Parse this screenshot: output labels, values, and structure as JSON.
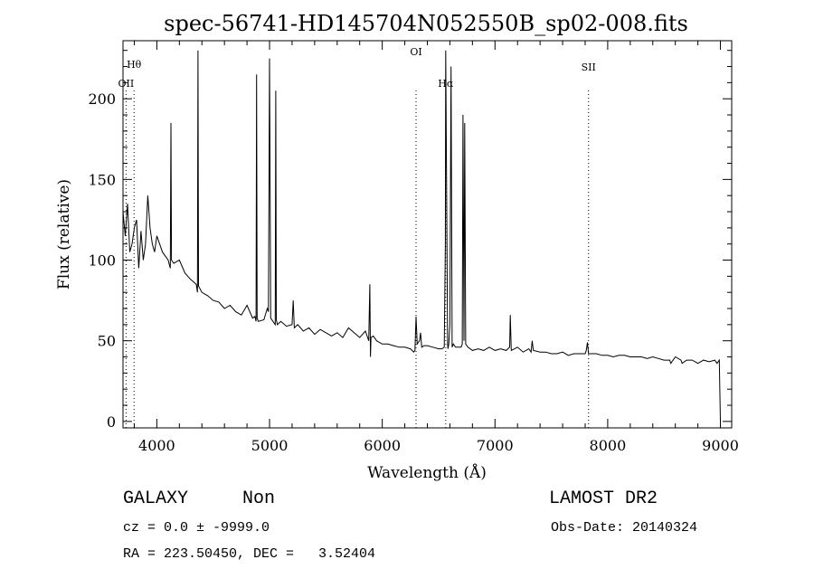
{
  "chart_data": {
    "type": "line",
    "title": "spec-56741-HD145704N052550B_sp02-008.fits",
    "xlabel": "Wavelength (Å)",
    "ylabel": "Flux (relative)",
    "xlim": [
      3700,
      9100
    ],
    "ylim": [
      -4,
      236
    ],
    "xticks": [
      4000,
      5000,
      6000,
      7000,
      8000,
      9000
    ],
    "yticks": [
      0,
      50,
      100,
      150,
      200
    ],
    "series": [
      {
        "x": [
          3700,
          3720,
          3740,
          3760,
          3780,
          3800,
          3820,
          3840,
          3860,
          3880,
          3900,
          3920,
          3940,
          3960,
          3980,
          4000,
          4050,
          4100,
          4120,
          4125,
          4130,
          4150,
          4200,
          4250,
          4300,
          4350,
          4360,
          4365,
          4370,
          4400,
          4450,
          4500,
          4550,
          4600,
          4650,
          4700,
          4750,
          4800,
          4850,
          4870,
          4880,
          4885,
          4890,
          4900,
          4950,
          4980,
          4990,
          5000,
          5010,
          5050,
          5055,
          5060,
          5070,
          5100,
          5150,
          5200,
          5210,
          5220,
          5250,
          5300,
          5350,
          5400,
          5450,
          5500,
          5550,
          5600,
          5650,
          5700,
          5750,
          5800,
          5850,
          5880,
          5890,
          5895,
          5900,
          5920,
          5950,
          6000,
          6050,
          6100,
          6150,
          6200,
          6250,
          6280,
          6290,
          6300,
          6310,
          6330,
          6340,
          6350,
          6370,
          6400,
          6450,
          6500,
          6530,
          6550,
          6560,
          6563,
          6580,
          6583,
          6590,
          6600,
          6610,
          6620,
          6630,
          6650,
          6700,
          6710,
          6716,
          6725,
          6731,
          6740,
          6760,
          6800,
          6850,
          6900,
          6950,
          7000,
          7050,
          7100,
          7130,
          7136,
          7145,
          7200,
          7250,
          7300,
          7320,
          7330,
          7340,
          7400,
          7450,
          7500,
          7550,
          7600,
          7650,
          7700,
          7750,
          7800,
          7810,
          7820,
          7830,
          7900,
          7950,
          8000,
          8050,
          8100,
          8150,
          8200,
          8250,
          8300,
          8350,
          8400,
          8450,
          8500,
          8550,
          8560,
          8600,
          8650,
          8660,
          8700,
          8750,
          8800,
          8850,
          8900,
          8950,
          8970,
          8990,
          9000
        ],
        "y": [
          130,
          115,
          135,
          105,
          110,
          120,
          125,
          95,
          118,
          100,
          110,
          140,
          120,
          110,
          105,
          115,
          105,
          100,
          95,
          185,
          100,
          98,
          100,
          92,
          88,
          85,
          80,
          230,
          84,
          80,
          78,
          75,
          74,
          70,
          72,
          68,
          66,
          72,
          64,
          65,
          62,
          215,
          64,
          62,
          63,
          70,
          68,
          225,
          64,
          60,
          205,
          63,
          60,
          62,
          59,
          60,
          75,
          58,
          60,
          56,
          58,
          54,
          57,
          55,
          53,
          55,
          52,
          58,
          55,
          52,
          56,
          50,
          85,
          40,
          52,
          53,
          50,
          48,
          48,
          47,
          46,
          46,
          45,
          43,
          44,
          65,
          48,
          50,
          55,
          46,
          47,
          47,
          46,
          45,
          45,
          46,
          110,
          230,
          48,
          45,
          48,
          60,
          220,
          46,
          48,
          46,
          46,
          48,
          190,
          50,
          185,
          48,
          46,
          44,
          45,
          44,
          46,
          44,
          45,
          44,
          46,
          66,
          44,
          46,
          43,
          45,
          43,
          50,
          44,
          43,
          43,
          42,
          42,
          43,
          41,
          42,
          42,
          42,
          44,
          49,
          42,
          42,
          41,
          41,
          40,
          41,
          41,
          40,
          40,
          40,
          39,
          40,
          39,
          38,
          38,
          36,
          40,
          38,
          36,
          38,
          38,
          36,
          38,
          37,
          38,
          36,
          38,
          0
        ]
      }
    ],
    "annotations": [
      {
        "label": "Hθ",
        "x": 3798
      },
      {
        "label": "OII",
        "x": 3727
      },
      {
        "label": "OI",
        "x": 6300
      },
      {
        "label": "Hα",
        "x": 6563
      },
      {
        "label": "SII",
        "x": 7830
      }
    ]
  },
  "footer": {
    "object_class": "GALAXY",
    "subclass": "Non",
    "survey": "LAMOST DR2",
    "redshift": "cz = 0.0 ± -9999.0",
    "obs_date": "Obs-Date: 20140324",
    "coords": "RA = 223.50450, DEC =   3.52404"
  }
}
